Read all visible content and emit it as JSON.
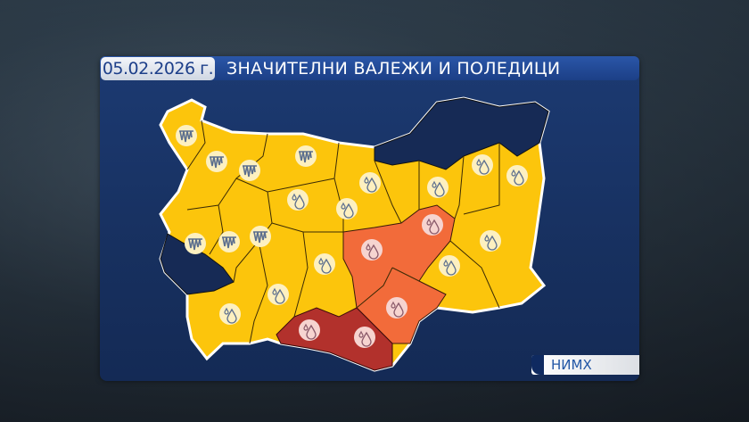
{
  "header": {
    "date": "05.02.2026 г.",
    "title": "ЗНАЧИТЕЛНИ ВАЛЕЖИ И ПОЛЕДИЦИ"
  },
  "source": {
    "label": "НИМХ"
  },
  "colors": {
    "no_warning": "#162a55",
    "yellow": "#fcc50c",
    "orange": "#f26b3a",
    "red": "#b2312c",
    "panel": "#17305f"
  },
  "icons": {
    "ice": "icicles-icon",
    "rain": "raindrops-icon"
  }
}
